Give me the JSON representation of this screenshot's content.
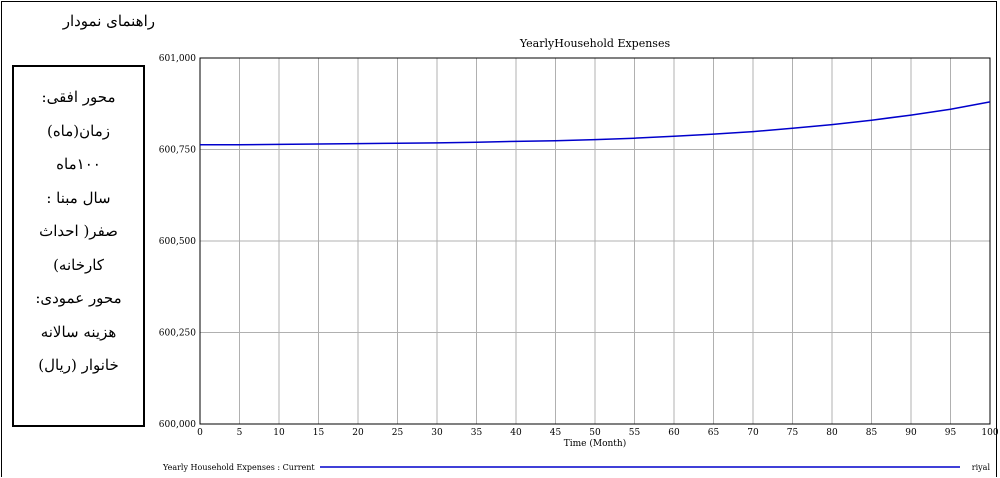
{
  "guide": {
    "title": "راهنمای نمودار",
    "lines": [
      "محور افقی:",
      "زمان(ماه)",
      "۱۰۰ماه",
      "سال مبنا :",
      "صفر( احداث",
      "کارخانه)",
      "محور عمودی:",
      "هزینه سالانه",
      "خانوار (ریال)"
    ]
  },
  "chart_data": {
    "type": "line",
    "title": "YearlyHousehold Expenses",
    "xlabel": "Time (Month)",
    "ylabel": "",
    "xlim": [
      0,
      100
    ],
    "ylim": [
      600000,
      601000
    ],
    "x_ticks": [
      0,
      5,
      10,
      15,
      20,
      25,
      30,
      35,
      40,
      45,
      50,
      55,
      60,
      65,
      70,
      75,
      80,
      85,
      90,
      95,
      100
    ],
    "y_ticks": [
      600000,
      600250,
      600500,
      600750,
      601000
    ],
    "y_tick_labels": [
      "600,000",
      "600,250",
      "600,500",
      "600,750",
      "601,000"
    ],
    "grid": true,
    "legend": {
      "placement": "bottom",
      "label": "Yearly Household Expenses : Current",
      "unit": "riyal"
    },
    "series": [
      {
        "name": "Yearly Household Expenses : Current",
        "color": "#0000cc",
        "x": [
          0,
          5,
          10,
          15,
          20,
          25,
          30,
          35,
          40,
          45,
          50,
          55,
          60,
          65,
          70,
          75,
          80,
          85,
          90,
          95,
          100
        ],
        "y": [
          600763,
          600763,
          600764,
          600765,
          600766,
          600767,
          600768,
          600770,
          600772,
          600774,
          600777,
          600781,
          600786,
          600792,
          600799,
          600808,
          600818,
          600830,
          600844,
          600860,
          600880
        ]
      }
    ]
  }
}
